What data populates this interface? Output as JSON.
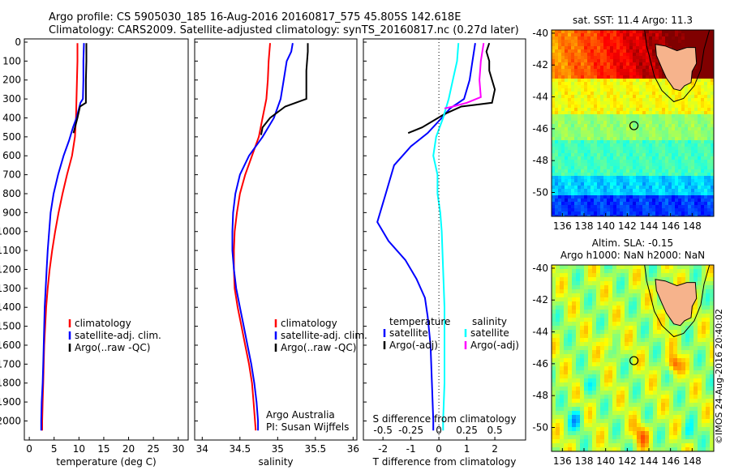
{
  "header": {
    "line1": "Argo profile: CS 5905030_185 16-Aug-2016 20160817_575 45.805S 142.618E",
    "line2": "Climatology: CARS2009. Satellite-adjusted climatology: synTS_20160817.nc (0.27d later)"
  },
  "colors": {
    "climatology": "#ff0000",
    "satellite": "#0000ff",
    "argo": "#000000",
    "s_satellite": "#00ffff",
    "s_argo": "#ff00ff",
    "land": "#f6b38c"
  },
  "chart_data": [
    {
      "type": "line",
      "xlabel": "temperature (deg C)",
      "ylabel": "",
      "xlim": [
        -1,
        32
      ],
      "ylim": [
        2075,
        0
      ],
      "x_ticks": [
        0,
        5,
        10,
        15,
        20,
        25,
        30
      ],
      "y_ticks": [
        0,
        100,
        200,
        300,
        400,
        500,
        600,
        700,
        800,
        900,
        1000,
        1100,
        1200,
        1300,
        1400,
        1500,
        1600,
        1700,
        1800,
        1900,
        2000
      ],
      "legend": [
        "climatology",
        "satellite-adj. clim.",
        "Argo(..raw -QC)"
      ],
      "series": [
        {
          "name": "climatology",
          "color": "#ff0000",
          "points": [
            [
              9.7,
              5
            ],
            [
              9.7,
              100
            ],
            [
              9.6,
              200
            ],
            [
              9.5,
              300
            ],
            [
              9.4,
              400
            ],
            [
              9.2,
              500
            ],
            [
              8.6,
              600
            ],
            [
              7.6,
              700
            ],
            [
              6.7,
              800
            ],
            [
              5.9,
              900
            ],
            [
              5.2,
              1000
            ],
            [
              4.6,
              1100
            ],
            [
              4.1,
              1200
            ],
            [
              3.7,
              1300
            ],
            [
              3.4,
              1400
            ],
            [
              3.2,
              1500
            ],
            [
              3.0,
              1600
            ],
            [
              2.9,
              1700
            ],
            [
              2.8,
              1800
            ],
            [
              2.7,
              1900
            ],
            [
              2.6,
              2000
            ],
            [
              2.6,
              2050
            ]
          ]
        },
        {
          "name": "satellite-adj. clim.",
          "color": "#0000ff",
          "points": [
            [
              11.0,
              5
            ],
            [
              10.9,
              100
            ],
            [
              10.9,
              200
            ],
            [
              10.8,
              300
            ],
            [
              10.3,
              320
            ],
            [
              9.5,
              400
            ],
            [
              8.8,
              450
            ],
            [
              8.0,
              520
            ],
            [
              6.9,
              600
            ],
            [
              5.8,
              700
            ],
            [
              4.9,
              800
            ],
            [
              4.3,
              900
            ],
            [
              4.0,
              1000
            ],
            [
              3.7,
              1100
            ],
            [
              3.5,
              1200
            ],
            [
              3.3,
              1300
            ],
            [
              3.1,
              1400
            ],
            [
              3.0,
              1500
            ],
            [
              2.9,
              1600
            ],
            [
              2.8,
              1700
            ],
            [
              2.7,
              1800
            ],
            [
              2.5,
              1900
            ],
            [
              2.4,
              2000
            ],
            [
              2.4,
              2050
            ]
          ]
        },
        {
          "name": "Argo(..raw -QC)",
          "color": "#000000",
          "points": [
            [
              11.5,
              5
            ],
            [
              11.5,
              100
            ],
            [
              11.4,
              200
            ],
            [
              11.4,
              320
            ],
            [
              10.2,
              340
            ],
            [
              9.7,
              400
            ],
            [
              8.9,
              480
            ]
          ]
        }
      ]
    },
    {
      "type": "line",
      "xlabel": "salinity",
      "ylabel": "",
      "xlim": [
        33.9,
        36.05
      ],
      "ylim": [
        2075,
        0
      ],
      "x_ticks": [
        34,
        34.5,
        35,
        35.5,
        36
      ],
      "legend": [
        "climatology",
        "satellite-adj. clim.",
        "Argo(..raw -QC)"
      ],
      "annotation": [
        "Argo Australia",
        "PI: Susan Wijffels"
      ],
      "series": [
        {
          "name": "climatology",
          "color": "#ff0000",
          "points": [
            [
              34.9,
              5
            ],
            [
              34.88,
              100
            ],
            [
              34.87,
              200
            ],
            [
              34.85,
              300
            ],
            [
              34.8,
              400
            ],
            [
              34.75,
              500
            ],
            [
              34.66,
              600
            ],
            [
              34.57,
              700
            ],
            [
              34.5,
              800
            ],
            [
              34.46,
              900
            ],
            [
              34.43,
              1000
            ],
            [
              34.42,
              1100
            ],
            [
              34.42,
              1200
            ],
            [
              34.43,
              1300
            ],
            [
              34.47,
              1400
            ],
            [
              34.52,
              1500
            ],
            [
              34.57,
              1600
            ],
            [
              34.62,
              1700
            ],
            [
              34.66,
              1800
            ],
            [
              34.68,
              1900
            ],
            [
              34.7,
              2000
            ],
            [
              34.71,
              2050
            ]
          ]
        },
        {
          "name": "satellite-adj. clim.",
          "color": "#0000ff",
          "points": [
            [
              35.2,
              5
            ],
            [
              35.18,
              50
            ],
            [
              35.12,
              100
            ],
            [
              35.08,
              200
            ],
            [
              35.04,
              300
            ],
            [
              34.95,
              400
            ],
            [
              34.8,
              500
            ],
            [
              34.62,
              600
            ],
            [
              34.5,
              700
            ],
            [
              34.44,
              800
            ],
            [
              34.41,
              900
            ],
            [
              34.4,
              1000
            ],
            [
              34.4,
              1100
            ],
            [
              34.42,
              1200
            ],
            [
              34.45,
              1300
            ],
            [
              34.5,
              1400
            ],
            [
              34.55,
              1500
            ],
            [
              34.6,
              1600
            ],
            [
              34.65,
              1700
            ],
            [
              34.69,
              1800
            ],
            [
              34.72,
              1900
            ],
            [
              34.74,
              2000
            ],
            [
              34.74,
              2050
            ]
          ]
        },
        {
          "name": "Argo(..raw -QC)",
          "color": "#000000",
          "points": [
            [
              35.4,
              5
            ],
            [
              35.4,
              50
            ],
            [
              35.38,
              150
            ],
            [
              35.38,
              300
            ],
            [
              35.1,
              340
            ],
            [
              34.9,
              400
            ],
            [
              34.8,
              450
            ],
            [
              34.78,
              490
            ]
          ]
        }
      ]
    },
    {
      "type": "line",
      "xlabel": "T difference from climatology",
      "xlabel_top": "S difference from climatology",
      "xlim": [
        -2.7,
        3.1
      ],
      "ylim": [
        2075,
        0
      ],
      "x_ticks": [
        -2,
        -1,
        0,
        1,
        2
      ],
      "x_ticks_top": [
        -0.5,
        -0.25,
        0,
        0.25,
        0.5
      ],
      "legend_headers": [
        "temperature",
        "salinity"
      ],
      "legend": [
        "satellite",
        "Argo(-adj)",
        "satellite",
        "Argo(-adj)"
      ],
      "series": [
        {
          "name": "satellite",
          "color": "#0000ff",
          "points": [
            [
              1.3,
              5
            ],
            [
              1.2,
              100
            ],
            [
              1.1,
              200
            ],
            [
              0.9,
              300
            ],
            [
              0.4,
              350
            ],
            [
              0.1,
              400
            ],
            [
              -0.4,
              480
            ],
            [
              -1.0,
              550
            ],
            [
              -1.6,
              650
            ],
            [
              -1.9,
              800
            ],
            [
              -2.2,
              950
            ],
            [
              -1.8,
              1050
            ],
            [
              -1.2,
              1150
            ],
            [
              -0.8,
              1250
            ],
            [
              -0.5,
              1350
            ],
            [
              -0.4,
              1450
            ],
            [
              -0.3,
              1600
            ],
            [
              -0.25,
              1800
            ],
            [
              -0.2,
              2000
            ],
            [
              -0.2,
              2050
            ]
          ]
        },
        {
          "name": "Argo(-adj)",
          "color": "#000000",
          "points": [
            [
              1.8,
              5
            ],
            [
              1.7,
              50
            ],
            [
              1.8,
              100
            ],
            [
              1.8,
              150
            ],
            [
              1.9,
              200
            ],
            [
              2.0,
              250
            ],
            [
              1.9,
              320
            ],
            [
              0.8,
              340
            ],
            [
              0.2,
              380
            ],
            [
              -0.6,
              450
            ],
            [
              -1.1,
              480
            ]
          ]
        },
        {
          "name": "satellite",
          "color": "#00ffff",
          "points": [
            [
              0.7,
              5
            ],
            [
              0.65,
              100
            ],
            [
              0.5,
              200
            ],
            [
              0.35,
              300
            ],
            [
              0.15,
              400
            ],
            [
              -0.1,
              500
            ],
            [
              -0.2,
              600
            ],
            [
              -0.05,
              700
            ],
            [
              -0.05,
              800
            ],
            [
              0.05,
              900
            ],
            [
              0.1,
              1000
            ],
            [
              0.15,
              1200
            ],
            [
              0.2,
              1400
            ],
            [
              0.2,
              1600
            ],
            [
              0.2,
              1800
            ],
            [
              0.15,
              2000
            ],
            [
              0.15,
              2050
            ]
          ]
        },
        {
          "name": "Argo(-adj)",
          "color": "#ff00ff",
          "points": [
            [
              1.6,
              5
            ],
            [
              1.5,
              100
            ],
            [
              1.45,
              200
            ],
            [
              1.5,
              290
            ],
            [
              1.0,
              320
            ],
            [
              0.5,
              340
            ],
            [
              0.2,
              350
            ]
          ]
        }
      ]
    },
    {
      "type": "heatmap",
      "title": "sat. SST: 11.4 Argo: 11.3",
      "xlim": [
        135,
        150
      ],
      "ylim": [
        -51.5,
        -39.8
      ],
      "x_ticks": [
        136,
        138,
        140,
        142,
        144,
        146,
        148
      ],
      "y_ticks": [
        -40,
        -42,
        -44,
        -46,
        -48,
        -50
      ],
      "marker": [
        142.618,
        -45.805
      ]
    },
    {
      "type": "heatmap",
      "title": "Altim. SLA: -0.15",
      "subtitle": "Argo h1000: NaN h2000: NaN",
      "xlim": [
        135,
        150
      ],
      "ylim": [
        -51.5,
        -39.8
      ],
      "x_ticks": [
        136,
        138,
        140,
        142,
        144,
        146,
        148
      ],
      "y_ticks": [
        -40,
        -42,
        -44,
        -46,
        -48,
        -50
      ],
      "marker": [
        142.618,
        -45.805
      ]
    }
  ],
  "watermark": "©IMOS 24-Aug-2016 20:40:02"
}
